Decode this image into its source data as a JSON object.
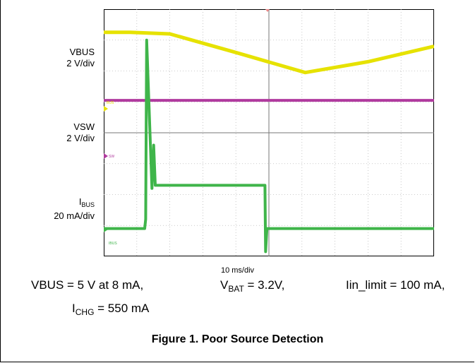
{
  "labels": {
    "vbus_name": "VBUS",
    "vbus_scale": "2 V/div",
    "vsw_name": "VSW",
    "vsw_scale": "2 V/div",
    "ibus_name": "I",
    "ibus_sub": "BUS",
    "ibus_scale": "20 mA/div",
    "time_scale": "10 ms/div"
  },
  "conditions": {
    "vbus": "VBUS = 5 V at 8 mA,",
    "vbat_prefix": "V",
    "vbat_sub": "BAT",
    "vbat_value": " = 3.2V,",
    "iin_limit": "Iin_limit = 100 mA,",
    "ichg_prefix": "I",
    "ichg_sub": "CHG",
    "ichg_value": " = 550 mA"
  },
  "figure_title": "Figure 1. Poor Source Detection",
  "chart_data": {
    "type": "line",
    "title": "",
    "xlabel": "10 ms/div",
    "xlim": [
      0,
      100
    ],
    "ylim": [
      0,
      8
    ],
    "x_unit": "ms",
    "grid": true,
    "series": [
      {
        "name": "VBUS",
        "color": "#e6e200",
        "x": [
          0,
          8,
          20,
          40,
          61,
          80,
          100
        ],
        "y": [
          7.25,
          7.25,
          7.2,
          6.6,
          5.95,
          6.3,
          6.8
        ]
      },
      {
        "name": "VSW",
        "color": "#b03a9e",
        "x": [
          0,
          100
        ],
        "y": [
          5.05,
          5.05
        ]
      },
      {
        "name": "IBUS",
        "color": "#3fb54a",
        "x": [
          0,
          12.4,
          12.7,
          13.0,
          14.6,
          15.1,
          15.6,
          48.8,
          49.0,
          49.4,
          50.5,
          100
        ],
        "y": [
          0.9,
          0.9,
          1.2,
          7.0,
          2.2,
          3.6,
          2.3,
          2.3,
          0.15,
          0.9,
          0.9,
          0.9
        ]
      }
    ]
  }
}
